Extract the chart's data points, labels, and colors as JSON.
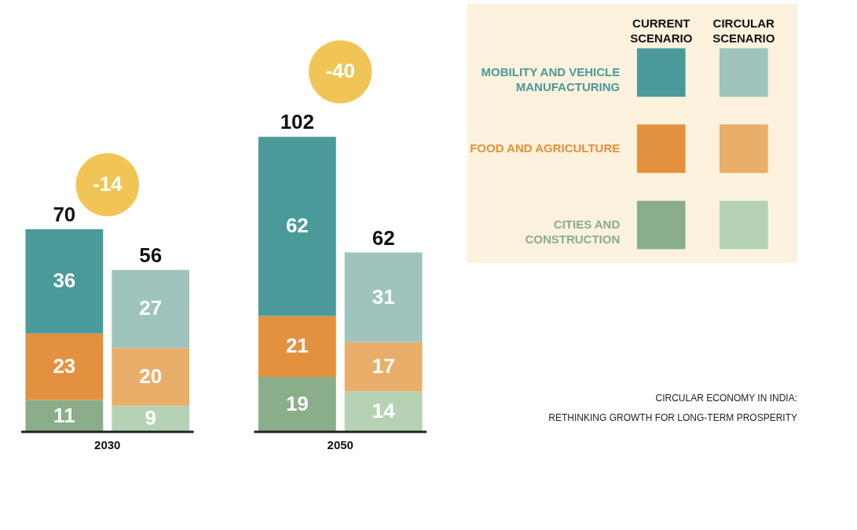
{
  "chart_data": {
    "type": "bar",
    "stacked": true,
    "data_labels": true,
    "legend": "right",
    "categories": [
      null,
      null,
      null,
      null
    ],
    "series": [
      {
        "name": "CITIES AND CONSTRUCTION",
        "color": "#8aae8a",
        "colors": [
          "#8aae8a",
          "#b5d3b4",
          "#8aae8a",
          "#b5d3b4"
        ],
        "values": [
          11,
          9,
          19,
          14
        ]
      },
      {
        "name": "FOOD AND AGRICULTURE",
        "color": "#e3913e",
        "colors": [
          "#e3913e",
          "#e9ae6a",
          "#e3913e",
          "#e9ae6a"
        ],
        "values": [
          23,
          20,
          21,
          17
        ]
      },
      {
        "name": "MOBILITY AND VEHICLE MANUFACTURING",
        "color": "#4a9a9a",
        "colors": [
          "#4a9a9a",
          "#9fc4bd",
          "#4a9a9a",
          "#9fc4bd"
        ],
        "values": [
          36,
          27,
          62,
          31
        ]
      }
    ],
    "totals": [
      "70",
      "56",
      "102",
      "62"
    ],
    "annotations": [
      "-14",
      "-40",
      "2030",
      "2050",
      "CURRENT SCENARIO",
      "CIRCULAR SCENARIO",
      "CIRCULAR ECONOMY IN INDIA:",
      "RETHINKING GROWTH FOR LONG-TERM PROSPERITY"
    ]
  }
}
